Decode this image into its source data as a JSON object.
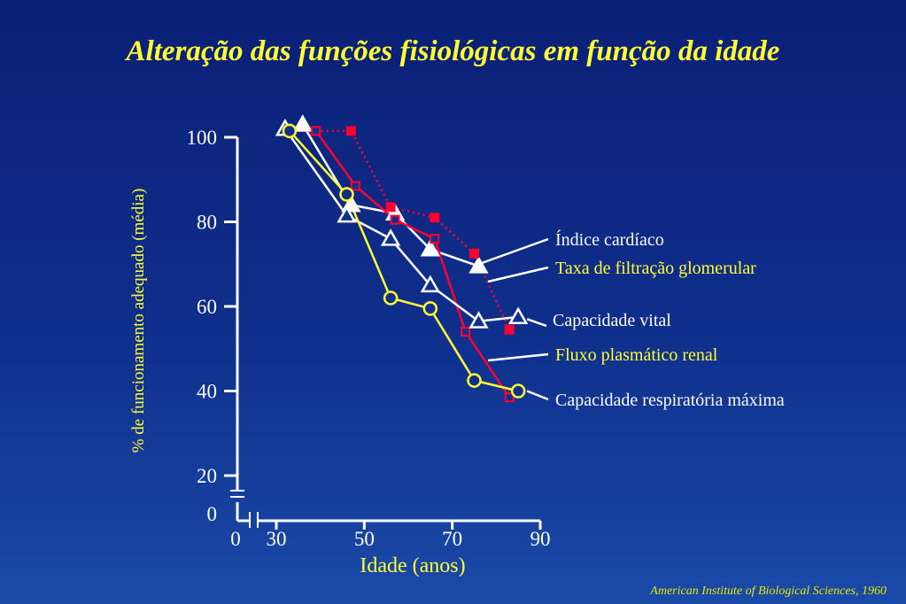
{
  "colors": {
    "white": "#ffffff",
    "yellow": "#ffff33",
    "red": "#ff0033"
  },
  "chart_data": {
    "type": "line",
    "title": "Alteração das funções fisiológicas em função da idade",
    "xlabel": "Idade (anos)",
    "ylabel": "% de funcionamento adequado  (média)",
    "xlim": [
      30,
      90
    ],
    "ylim": [
      20,
      100
    ],
    "x_ticks": [
      30,
      50,
      70,
      90
    ],
    "y_ticks": [
      20,
      40,
      60,
      80,
      100
    ],
    "x_break_label": "0",
    "y_break_label": "0",
    "grid": false,
    "series": [
      {
        "name": "Índice cardíaco",
        "color": "white",
        "marker": "filled-triangle",
        "line": "solid",
        "points": [
          [
            36,
            103
          ],
          [
            47,
            84
          ],
          [
            57,
            82
          ],
          [
            65,
            73.5
          ],
          [
            76,
            69.5
          ]
        ]
      },
      {
        "name": "Taxa de filtração glomerular",
        "color": "red",
        "marker": "open-square",
        "line": "solid",
        "points": [
          [
            33,
            101.5
          ],
          [
            39,
            101.5
          ],
          [
            48,
            88.5
          ],
          [
            57,
            80.5
          ],
          [
            66,
            76
          ],
          [
            73,
            54
          ],
          [
            83,
            38.5
          ]
        ]
      },
      {
        "name": "Capacidade vital",
        "color": "white",
        "marker": "open-triangle",
        "line": "solid",
        "points": [
          [
            32,
            102
          ],
          [
            46,
            81.5
          ],
          [
            56,
            76
          ],
          [
            65,
            65
          ],
          [
            76,
            56.5
          ],
          [
            85,
            57.5
          ]
        ]
      },
      {
        "name": "Fluxo plasmático renal",
        "color": "red",
        "marker": "filled-square",
        "line": "dotted",
        "points": [
          [
            33,
            101.5
          ],
          [
            47,
            101.5
          ],
          [
            56,
            83.5
          ],
          [
            66,
            81
          ],
          [
            75,
            72.5
          ],
          [
            83,
            54.5
          ]
        ]
      },
      {
        "name": "Capacidade respiratória máxima",
        "color": "yellow",
        "marker": "open-circle",
        "line": "solid",
        "points": [
          [
            33,
            101.5
          ],
          [
            46,
            86.5
          ],
          [
            56,
            62
          ],
          [
            65,
            59.5
          ],
          [
            75,
            42.5
          ],
          [
            85,
            40
          ]
        ]
      }
    ],
    "annotations": [
      {
        "series": 0,
        "text": "Índice cardíaco",
        "text_color": "white"
      },
      {
        "series": 1,
        "text": "Taxa de filtração glomerular",
        "text_color": "yellow"
      },
      {
        "series": 2,
        "text": "Capacidade vital",
        "text_color": "white"
      },
      {
        "series": 3,
        "text": "Fluxo plasmático renal",
        "text_color": "yellow"
      },
      {
        "series": 4,
        "text": "Capacidade respiratória máxima",
        "text_color": "white"
      }
    ]
  },
  "citation": "American Institute of Biological Sciences, 1960"
}
